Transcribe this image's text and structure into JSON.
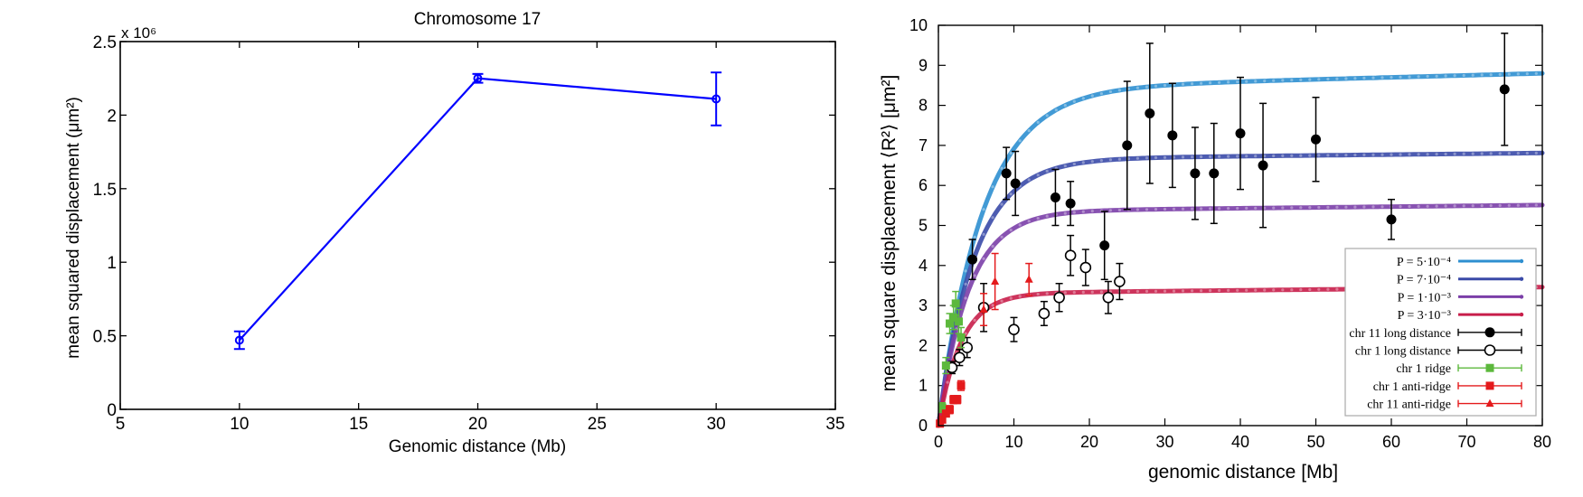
{
  "chart_data": [
    {
      "type": "line",
      "title": "Chromosome 17",
      "xlabel": "Genomic distance (Mb)",
      "ylabel": "mean squared displacement (μm²)",
      "y_multiplier": "x 10⁶",
      "xlim": [
        5,
        35
      ],
      "ylim": [
        0,
        2.5
      ],
      "x_ticks": [
        5,
        10,
        15,
        20,
        25,
        30,
        35
      ],
      "y_ticks": [
        0,
        0.5,
        1,
        1.5,
        2,
        2.5
      ],
      "y_tick_labels": [
        "0",
        "0.5",
        "1",
        "1.5",
        "2",
        "2.5"
      ],
      "grid": false,
      "color": "#0000ff",
      "series": [
        {
          "x": [
            10,
            20,
            30
          ],
          "y": [
            0.47,
            2.25,
            2.11
          ],
          "err": [
            0.06,
            0.03,
            0.18
          ]
        }
      ]
    },
    {
      "type": "scatter",
      "xlabel": "genomic distance [Mb]",
      "ylabel": "mean square displacement ⟨R²⟩ [μm²]",
      "xlim": [
        0,
        80
      ],
      "ylim": [
        0,
        10
      ],
      "x_ticks": [
        0,
        10,
        20,
        30,
        40,
        50,
        60,
        70,
        80
      ],
      "y_ticks": [
        0,
        1,
        2,
        3,
        4,
        5,
        6,
        7,
        8,
        9,
        10
      ],
      "grid": false,
      "legend_position": "bottom-right",
      "curves": [
        {
          "name": "P = 5·10⁻⁴",
          "color": "#2e8fd0",
          "plateau": 8.4,
          "k": 0.17,
          "slope": 0.005
        },
        {
          "name": "P = 7·10⁻⁴",
          "color": "#3a4aa8",
          "plateau": 6.65,
          "k": 0.21,
          "slope": 0.002
        },
        {
          "name": "P = 1·10⁻³",
          "color": "#7b3fa8",
          "plateau": 5.35,
          "k": 0.25,
          "slope": 0.002
        },
        {
          "name": "P = 3·10⁻³",
          "color": "#c81e4a",
          "plateau": 3.3,
          "k": 0.33,
          "slope": 0.002
        }
      ],
      "series": [
        {
          "name": "chr 11 long distance",
          "marker": "filled-circle",
          "color": "#000000",
          "x": [
            4.5,
            9,
            10.2,
            15.5,
            17.5,
            22,
            25,
            28,
            31,
            34,
            36.5,
            40,
            43,
            50,
            60,
            75
          ],
          "y": [
            4.15,
            6.3,
            6.05,
            5.7,
            5.55,
            4.5,
            7.0,
            7.8,
            7.25,
            6.3,
            6.3,
            7.3,
            6.5,
            7.15,
            5.15,
            8.4
          ],
          "err": [
            0.5,
            0.65,
            0.8,
            0.7,
            0.55,
            0.85,
            1.6,
            1.75,
            1.3,
            1.15,
            1.25,
            1.4,
            1.55,
            1.05,
            0.5,
            1.4
          ]
        },
        {
          "name": "chr 1 long distance",
          "marker": "open-circle",
          "color": "#000000",
          "x": [
            1.8,
            2.8,
            3.8,
            6,
            10,
            14,
            16,
            17.5,
            19.5,
            22.5,
            24
          ],
          "y": [
            1.45,
            1.7,
            1.95,
            2.95,
            2.4,
            2.8,
            3.2,
            4.25,
            3.95,
            3.2,
            3.6
          ],
          "err": [
            0.15,
            0.2,
            0.25,
            0.6,
            0.3,
            0.3,
            0.35,
            0.5,
            0.45,
            0.4,
            0.45
          ]
        },
        {
          "name": "chr 1 ridge",
          "marker": "filled-square",
          "color": "#5cb83c",
          "x": [
            0.5,
            1,
            1.5,
            2,
            2.3,
            2.7,
            3
          ],
          "y": [
            0.45,
            1.5,
            2.55,
            2.7,
            3.05,
            2.6,
            2.2
          ],
          "err": [
            0.12,
            0.2,
            0.25,
            0.3,
            0.3,
            0.3,
            0.25
          ]
        },
        {
          "name": "chr 1 anti-ridge",
          "marker": "filled-square",
          "color": "#e41a1c",
          "x": [
            0.2,
            0.5,
            1,
            1.5,
            2,
            2.5,
            3
          ],
          "y": [
            0.05,
            0.15,
            0.3,
            0.4,
            0.65,
            0.65,
            1.0
          ],
          "err": [
            0.05,
            0.05,
            0.08,
            0.1,
            0.1,
            0.1,
            0.12
          ]
        },
        {
          "name": "chr 11 anti-ridge",
          "marker": "triangle",
          "color": "#e41a1c",
          "x": [
            6,
            7.5,
            12
          ],
          "y": [
            2.9,
            3.6,
            3.65
          ],
          "err": [
            0.4,
            0.7,
            0.4
          ]
        }
      ]
    }
  ]
}
